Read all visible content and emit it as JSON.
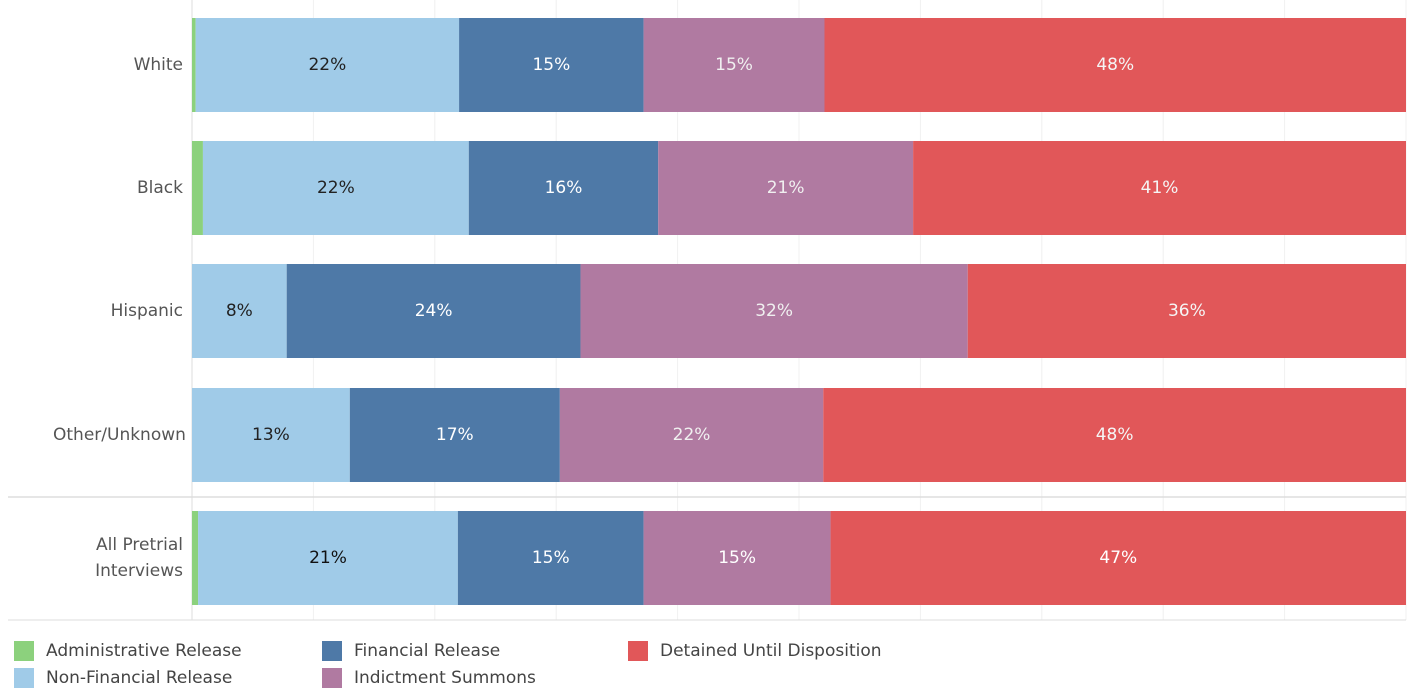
{
  "chart_data": {
    "type": "stacked-bar-horizontal",
    "categories": [
      "White",
      "Black",
      "Hispanic",
      "Other/Unknown",
      "All Pretrial Interviews"
    ],
    "series": [
      {
        "name": "Administrative Release",
        "color": "#8cd17d",
        "values": [
          0.3,
          0.9,
          0,
          0,
          0.5
        ],
        "value_labels": [
          null,
          null,
          null,
          null,
          null
        ]
      },
      {
        "name": "Non-Financial Release",
        "color": "#a0cbe8",
        "values": [
          21.7,
          21.9,
          7.8,
          13.0,
          21.4
        ],
        "value_labels": [
          "22%",
          "22%",
          "8%",
          "13%",
          "21%"
        ]
      },
      {
        "name": "Financial Release",
        "color": "#4e79a7",
        "values": [
          15.2,
          15.6,
          24.2,
          17.3,
          15.3
        ],
        "value_labels": [
          "15%",
          "16%",
          "24%",
          "17%",
          "15%"
        ]
      },
      {
        "name": "Indictment Summons",
        "color": "#b07aa1",
        "values": [
          14.9,
          21.0,
          31.9,
          21.7,
          15.4
        ],
        "value_labels": [
          "15%",
          "21%",
          "32%",
          "22%",
          "15%"
        ]
      },
      {
        "name": "Detained Until Disposition",
        "color": "#e15759",
        "values": [
          47.9,
          40.6,
          36.1,
          48.0,
          47.4
        ],
        "value_labels": [
          "48%",
          "41%",
          "36%",
          "48%",
          "47%"
        ]
      }
    ],
    "xlim": [
      0,
      100
    ],
    "xticks": [
      0,
      10,
      20,
      30,
      40,
      50,
      60,
      70,
      80,
      90,
      100
    ],
    "grid": true
  }
}
